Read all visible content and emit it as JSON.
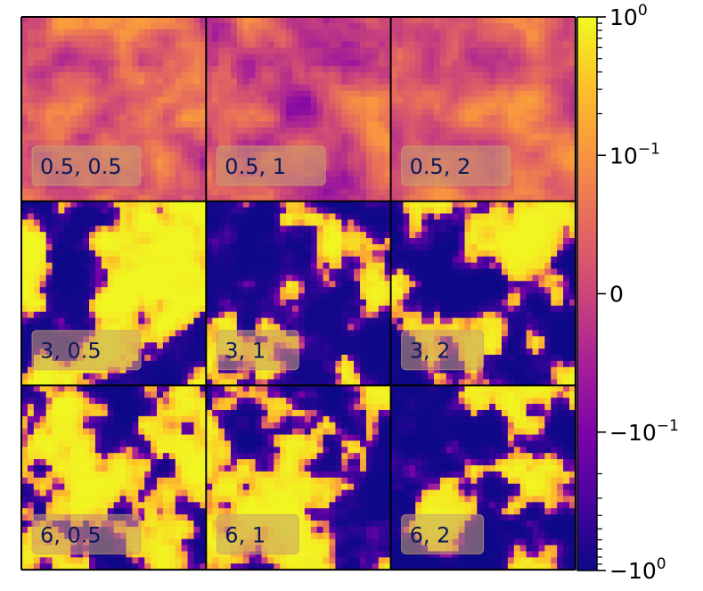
{
  "chart_data": {
    "type": "heatmap",
    "grid": {
      "rows": 3,
      "cols": 3
    },
    "panels": [
      {
        "label": "0.5, 0.5",
        "row": 0,
        "col": 0,
        "mean_level": 0.05,
        "contrast": 0.15,
        "seed": 11
      },
      {
        "label": "0.5, 1",
        "row": 0,
        "col": 1,
        "mean_level": 0.02,
        "contrast": 0.14,
        "seed": 23
      },
      {
        "label": "0.5, 2",
        "row": 0,
        "col": 2,
        "mean_level": 0.05,
        "contrast": 0.12,
        "seed": 37
      },
      {
        "label": "3, 0.5",
        "row": 1,
        "col": 0,
        "mean_level": 0.0,
        "contrast": 1.0,
        "seed": 41
      },
      {
        "label": "3, 1",
        "row": 1,
        "col": 1,
        "mean_level": 0.0,
        "contrast": 1.0,
        "seed": 53
      },
      {
        "label": "3, 2",
        "row": 1,
        "col": 2,
        "mean_level": -0.05,
        "contrast": 1.0,
        "seed": 67
      },
      {
        "label": "6, 0.5",
        "row": 2,
        "col": 0,
        "mean_level": -0.05,
        "contrast": 1.0,
        "seed": 71
      },
      {
        "label": "6, 1",
        "row": 2,
        "col": 1,
        "mean_level": -0.05,
        "contrast": 1.0,
        "seed": 83
      },
      {
        "label": "6, 2",
        "row": 2,
        "col": 2,
        "mean_level": -0.05,
        "contrast": 1.0,
        "seed": 97
      }
    ],
    "colorbar": {
      "colormap": "plasma",
      "scale": "symlog",
      "range": [
        -1,
        1
      ],
      "ticks": [
        {
          "value": 1,
          "base": "10",
          "exp": "0",
          "sign": ""
        },
        {
          "value": 0.1,
          "base": "10",
          "exp": "−1",
          "sign": ""
        },
        {
          "value": 0,
          "base": "0",
          "exp": "",
          "sign": ""
        },
        {
          "value": -0.1,
          "base": "10",
          "exp": "−1",
          "sign": "−"
        },
        {
          "value": -1,
          "base": "10",
          "exp": "0",
          "sign": "−"
        }
      ]
    },
    "colors": {
      "plasma_low": "#0d0887",
      "plasma_mid": "#cc4778",
      "plasma_high": "#f0f921",
      "label_box": "#c9a070"
    }
  }
}
